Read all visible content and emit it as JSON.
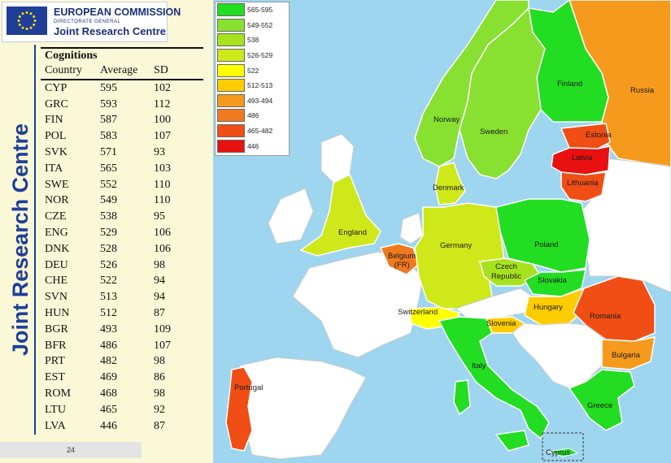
{
  "header": {
    "org_name": "EUROPEAN COMMISSION",
    "directorate": "DIRECTORATE GENERAL",
    "centre_name": "Joint Research Centre",
    "vertical_title": "Joint Research Centre"
  },
  "table": {
    "title": "Cognitions",
    "columns": [
      "Country",
      "Average",
      "SD"
    ],
    "rows": [
      [
        "CYP",
        "595",
        "102"
      ],
      [
        "GRC",
        "593",
        "112"
      ],
      [
        "FIN",
        "587",
        "100"
      ],
      [
        "POL",
        "583",
        "107"
      ],
      [
        "SVK",
        "571",
        "93"
      ],
      [
        "ITA",
        "565",
        "103"
      ],
      [
        "SWE",
        "552",
        "110"
      ],
      [
        "NOR",
        "549",
        "110"
      ],
      [
        "CZE",
        "538",
        "95"
      ],
      [
        "ENG",
        "529",
        "106"
      ],
      [
        "DNK",
        "528",
        "106"
      ],
      [
        "DEU",
        "526",
        "98"
      ],
      [
        "CHE",
        "522",
        "94"
      ],
      [
        "SVN",
        "513",
        "94"
      ],
      [
        "HUN",
        "512",
        "87"
      ],
      [
        "BGR",
        "493",
        "109"
      ],
      [
        "BFR",
        "486",
        "107"
      ],
      [
        "PRT",
        "482",
        "98"
      ],
      [
        "EST",
        "469",
        "86"
      ],
      [
        "ROM",
        "468",
        "98"
      ],
      [
        "LTU",
        "465",
        "92"
      ],
      [
        "LVA",
        "446",
        "87"
      ]
    ]
  },
  "page_number": "24",
  "legend": [
    {
      "label": "565-595",
      "color": "#22dd22"
    },
    {
      "label": "549-552",
      "color": "#88e030"
    },
    {
      "label": "538",
      "color": "#a8e21e"
    },
    {
      "label": "526-529",
      "color": "#cfe81a"
    },
    {
      "label": "522",
      "color": "#ffff00"
    },
    {
      "label": "512-513",
      "color": "#ffcc00"
    },
    {
      "label": "493-494",
      "color": "#f59a1c"
    },
    {
      "label": "486",
      "color": "#f07a20"
    },
    {
      "label": "465-482",
      "color": "#f04e14"
    },
    {
      "label": "446",
      "color": "#e81010"
    }
  ],
  "map_labels": {
    "finland": "Finland",
    "russia": "Russia",
    "norway": "Norway",
    "sweden": "Sweden",
    "estonia": "Estonia",
    "latvia": "Latvia",
    "lithuania": "Lithuania",
    "denmark": "Denmark",
    "england": "England",
    "belgium": "Belgium\n(FR)",
    "germany": "Germany",
    "poland": "Poland",
    "czech": "Czech\nRepublic",
    "slovakia": "Slovakia",
    "switzerland": "Switzerland",
    "hungary": "Hungary",
    "romania": "Romania",
    "slovenia": "Slovenia",
    "italy": "Italy",
    "bulgaria": "Bulgaria",
    "portugal": "Portugal",
    "greece": "Greece",
    "cyprus": "Cyprus"
  }
}
